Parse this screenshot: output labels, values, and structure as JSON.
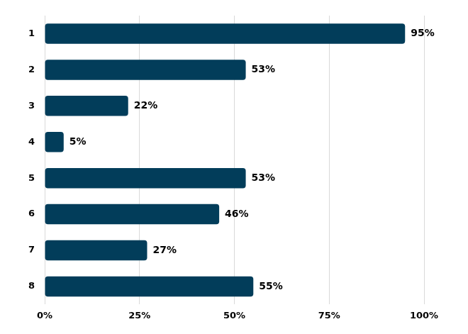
{
  "chart_data": {
    "type": "bar",
    "orientation": "horizontal",
    "categories": [
      "1",
      "2",
      "3",
      "4",
      "5",
      "6",
      "7",
      "8"
    ],
    "values": [
      95,
      53,
      22,
      5,
      53,
      46,
      27,
      55
    ],
    "value_labels": [
      "95%",
      "53%",
      "22%",
      "5%",
      "53%",
      "46%",
      "27%",
      "55%"
    ],
    "data_labels": true,
    "color": "#023d5a",
    "xlim": [
      0,
      100
    ],
    "xticks": [
      {
        "value": 0,
        "label": "0%"
      },
      {
        "value": 25,
        "label": "25%"
      },
      {
        "value": 50,
        "label": "50%"
      },
      {
        "value": 75,
        "label": "75%"
      },
      {
        "value": 100,
        "label": "100%"
      }
    ],
    "grid": true
  }
}
